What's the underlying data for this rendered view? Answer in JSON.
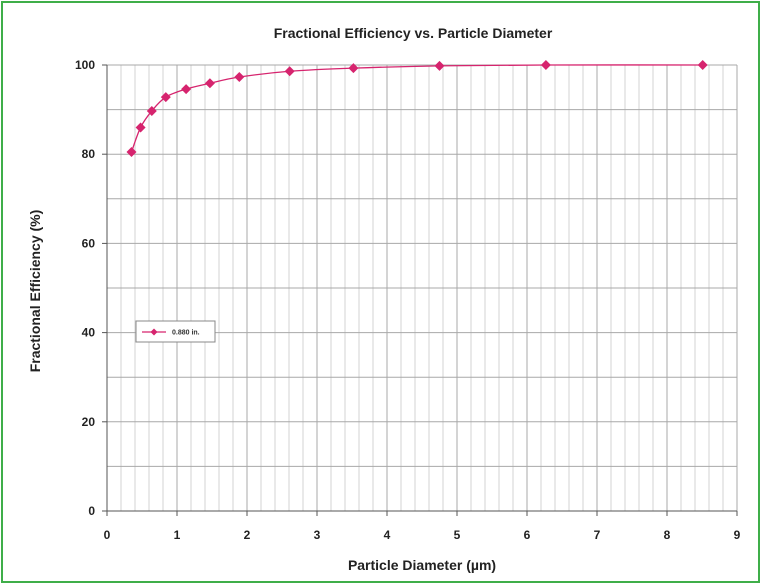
{
  "chart_data": {
    "type": "line",
    "title": "Fractional Efficiency vs. Particle Diameter",
    "xlabel": "Particle Diameter (µm)",
    "ylabel": "Fractional Efficiency (%)",
    "xlim": [
      0,
      9
    ],
    "ylim": [
      0,
      100
    ],
    "x_ticks": [
      0,
      1,
      2,
      3,
      4,
      5,
      6,
      7,
      8,
      9
    ],
    "y_ticks": [
      0,
      20,
      40,
      60,
      80,
      100
    ],
    "grid": true,
    "legend_position": "left-middle",
    "series": [
      {
        "name": "0.880 in.",
        "color": "#d6246e",
        "marker": "diamond",
        "x": [
          0.35,
          0.48,
          0.64,
          0.84,
          1.13,
          1.47,
          1.89,
          2.61,
          3.52,
          4.75,
          6.27,
          8.51
        ],
        "y": [
          80.5,
          86.0,
          89.7,
          92.8,
          94.6,
          95.9,
          97.3,
          98.6,
          99.3,
          99.8,
          100.0,
          100.0
        ]
      }
    ]
  }
}
